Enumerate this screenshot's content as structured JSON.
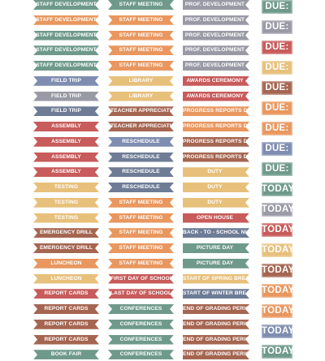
{
  "palette": {
    "sage": "#6f9a8b",
    "orange": "#e9975f",
    "gray": "#9a9aa6",
    "blue": "#7e8db0",
    "yellow": "#e7c07b",
    "red": "#c85b5b",
    "brown": "#a56651",
    "slate": "#6e7c95",
    "tan": "#d8b36f"
  },
  "columns": [
    {
      "stickers": [
        {
          "text": "STAFF DEVELOPMENT",
          "color": "#6f9a8b"
        },
        {
          "text": "STAFF DEVELOPMENT",
          "color": "#e9975f"
        },
        {
          "text": "STAFF DEVELOPMENT",
          "color": "#6f9a8b"
        },
        {
          "text": "STAFF DEVELOPMENT",
          "color": "#6f9a8b"
        },
        {
          "text": "STAFF DEVELOPMENT",
          "color": "#6f9a8b"
        },
        {
          "text": "FIELD TRIP",
          "color": "#7e8db0"
        },
        {
          "text": "FIELD TRIP",
          "color": "#9a9aa6"
        },
        {
          "text": "FIELD TRIP",
          "color": "#6e7c95"
        },
        {
          "text": "ASSEMBLY",
          "color": "#c85b5b"
        },
        {
          "text": "ASSEMBLY",
          "color": "#c85b5b"
        },
        {
          "text": "ASSEMBLY",
          "color": "#c85b5b"
        },
        {
          "text": "ASSEMBLY",
          "color": "#c85b5b"
        },
        {
          "text": "TESTING",
          "color": "#e7c07b"
        },
        {
          "text": "TESTING",
          "color": "#e7c07b"
        },
        {
          "text": "TESTING",
          "color": "#e7c07b"
        },
        {
          "text": "EMERGENCY DRILL",
          "color": "#a56651"
        },
        {
          "text": "EMERGENCY DRILL",
          "color": "#a56651"
        },
        {
          "text": "LUNCHEON",
          "color": "#e9975f"
        },
        {
          "text": "LUNCHEON",
          "color": "#e7c07b"
        },
        {
          "text": "REPORT CARDS",
          "color": "#c85b5b"
        },
        {
          "text": "REPORT CARDS",
          "color": "#a56651"
        },
        {
          "text": "REPORT CARDS",
          "color": "#a56651"
        },
        {
          "text": "REPORT CARDS",
          "color": "#a56651"
        },
        {
          "text": "BOOK FAIR",
          "color": "#6f9a8b"
        }
      ]
    },
    {
      "stickers": [
        {
          "text": "STAFF MEETING",
          "color": "#6f9a8b"
        },
        {
          "text": "STAFF MEETING",
          "color": "#e9975f"
        },
        {
          "text": "STAFF MEETING",
          "color": "#e9975f"
        },
        {
          "text": "STAFF MEETING",
          "color": "#e9975f"
        },
        {
          "text": "STAFF MEETING",
          "color": "#e9975f"
        },
        {
          "text": "LIBRARY",
          "color": "#e7c07b"
        },
        {
          "text": "LIBRARY",
          "color": "#e7c07b"
        },
        {
          "text": "TEACHER APPRECIATION",
          "color": "#a56651"
        },
        {
          "text": "TEACHER APPRECIATION",
          "color": "#a56651"
        },
        {
          "text": "RESCHEDULE",
          "color": "#7e8db0"
        },
        {
          "text": "RESCHEDULE",
          "color": "#6e7c95"
        },
        {
          "text": "RESCHEDULE",
          "color": "#6e7c95"
        },
        {
          "text": "RESCHEDULE",
          "color": "#6e7c95"
        },
        {
          "text": "STAFF MEETING",
          "color": "#e9975f"
        },
        {
          "text": "STAFF MEETING",
          "color": "#e9975f"
        },
        {
          "text": "STAFF MEETING",
          "color": "#e9975f"
        },
        {
          "text": "STAFF MEETING",
          "color": "#e9975f"
        },
        {
          "text": "STAFF MEETING",
          "color": "#e9975f"
        },
        {
          "text": "FIRST DAY OF SCHOOL",
          "color": "#c85b5b"
        },
        {
          "text": "LAST DAY OF SCHOOL",
          "color": "#c85b5b"
        },
        {
          "text": "CONFERENCES",
          "color": "#6f9a8b"
        },
        {
          "text": "CONFERENCES",
          "color": "#6f9a8b"
        },
        {
          "text": "CONFERENCES",
          "color": "#6f9a8b"
        },
        {
          "text": "CONFERENCES",
          "color": "#6f9a8b"
        }
      ]
    },
    {
      "stickers": [
        {
          "text": "PROF. DEVELOPMENT",
          "color": "#9a9aa6"
        },
        {
          "text": "PROF. DEVELOPMENT",
          "color": "#9a9aa6"
        },
        {
          "text": "PROF. DEVELOPMENT",
          "color": "#9a9aa6"
        },
        {
          "text": "PROF. DEVELOPMENT",
          "color": "#9a9aa6"
        },
        {
          "text": "PROF. DEVELOPMENT",
          "color": "#9a9aa6"
        },
        {
          "text": "AWARDS CEREMONY",
          "color": "#c85b5b"
        },
        {
          "text": "AWARDS CEREMONY",
          "color": "#c85b5b"
        },
        {
          "text": "PROGRESS REPORTS DUE",
          "color": "#e9975f"
        },
        {
          "text": "PROGRESS REPORTS DUE",
          "color": "#e9975f"
        },
        {
          "text": "PROGRESS REPORTS DUE",
          "color": "#a56651"
        },
        {
          "text": "PROGRESS REPORTS DUE",
          "color": "#a56651"
        },
        {
          "text": "DUTY",
          "color": "#e7c07b"
        },
        {
          "text": "DUTY",
          "color": "#e7c07b"
        },
        {
          "text": "DUTY",
          "color": "#e7c07b"
        },
        {
          "text": "OPEN HOUSE",
          "color": "#c85b5b"
        },
        {
          "text": "BACK - TO - SCHOOL NIGHT",
          "color": "#6e7c95"
        },
        {
          "text": "PICTURE DAY",
          "color": "#6f9a8b"
        },
        {
          "text": "PICTURE DAY",
          "color": "#6f9a8b"
        },
        {
          "text": "START OF SPRING BREAK",
          "color": "#e7c07b"
        },
        {
          "text": "START OF WINTER BREAK",
          "color": "#6e7c95"
        },
        {
          "text": "END OF GRADING PERIOD",
          "color": "#a56651"
        },
        {
          "text": "END OF GRADING PERIOD",
          "color": "#a56651"
        },
        {
          "text": "END OF GRADING PERIOD",
          "color": "#a56651"
        },
        {
          "text": "END OF GRADING PERIOD",
          "color": "#a56651"
        }
      ]
    },
    {
      "stickers": [
        {
          "text": "DUE:",
          "color": "#6f9a8b"
        },
        {
          "text": "DUE:",
          "color": "#9a9aa6"
        },
        {
          "text": "DUE:",
          "color": "#c85b5b"
        },
        {
          "text": "DUE:",
          "color": "#e7c07b"
        },
        {
          "text": "DUE:",
          "color": "#a56651"
        },
        {
          "text": "DUE:",
          "color": "#e9975f"
        },
        {
          "text": "DUE:",
          "color": "#e9975f"
        },
        {
          "text": "DUE:",
          "color": "#7e8db0"
        },
        {
          "text": "DUE:",
          "color": "#6f9a8b"
        },
        {
          "text": "TODAY",
          "color": "#6f9a8b"
        },
        {
          "text": "TODAY",
          "color": "#9a9aa6"
        },
        {
          "text": "TODAY",
          "color": "#c85b5b"
        },
        {
          "text": "TODAY",
          "color": "#e7c07b"
        },
        {
          "text": "TODAY",
          "color": "#a56651"
        },
        {
          "text": "TODAY",
          "color": "#e9975f"
        },
        {
          "text": "TODAY",
          "color": "#e9975f"
        },
        {
          "text": "TODAY",
          "color": "#7e8db0"
        },
        {
          "text": "TODAY",
          "color": "#6f9a8b"
        }
      ]
    }
  ]
}
